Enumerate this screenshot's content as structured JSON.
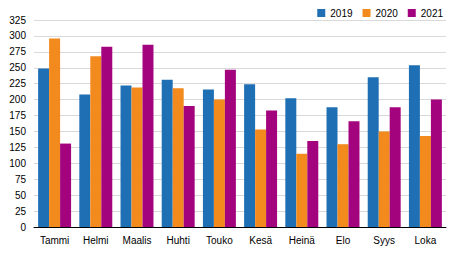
{
  "chart_data": {
    "type": "bar",
    "categories": [
      "Tammi",
      "Helmi",
      "Maalis",
      "Huhti",
      "Touko",
      "Kesä",
      "Heinä",
      "Elo",
      "Syys",
      "Loka"
    ],
    "series": [
      {
        "name": "2019",
        "color": "#1f6fb4",
        "values": [
          249,
          208,
          222,
          231,
          216,
          224,
          202,
          188,
          235,
          254
        ]
      },
      {
        "name": "2020",
        "color": "#f28a1e",
        "values": [
          296,
          268,
          219,
          218,
          200,
          153,
          115,
          130,
          150,
          143
        ]
      },
      {
        "name": "2021",
        "color": "#a4037e",
        "values": [
          131,
          283,
          286,
          190,
          247,
          183,
          135,
          166,
          188,
          200
        ]
      }
    ],
    "ylim": [
      0,
      325
    ],
    "yticks": [
      0,
      25,
      50,
      75,
      100,
      125,
      150,
      175,
      200,
      225,
      250,
      275,
      300,
      325
    ],
    "grid": true,
    "legend": "top-right"
  }
}
